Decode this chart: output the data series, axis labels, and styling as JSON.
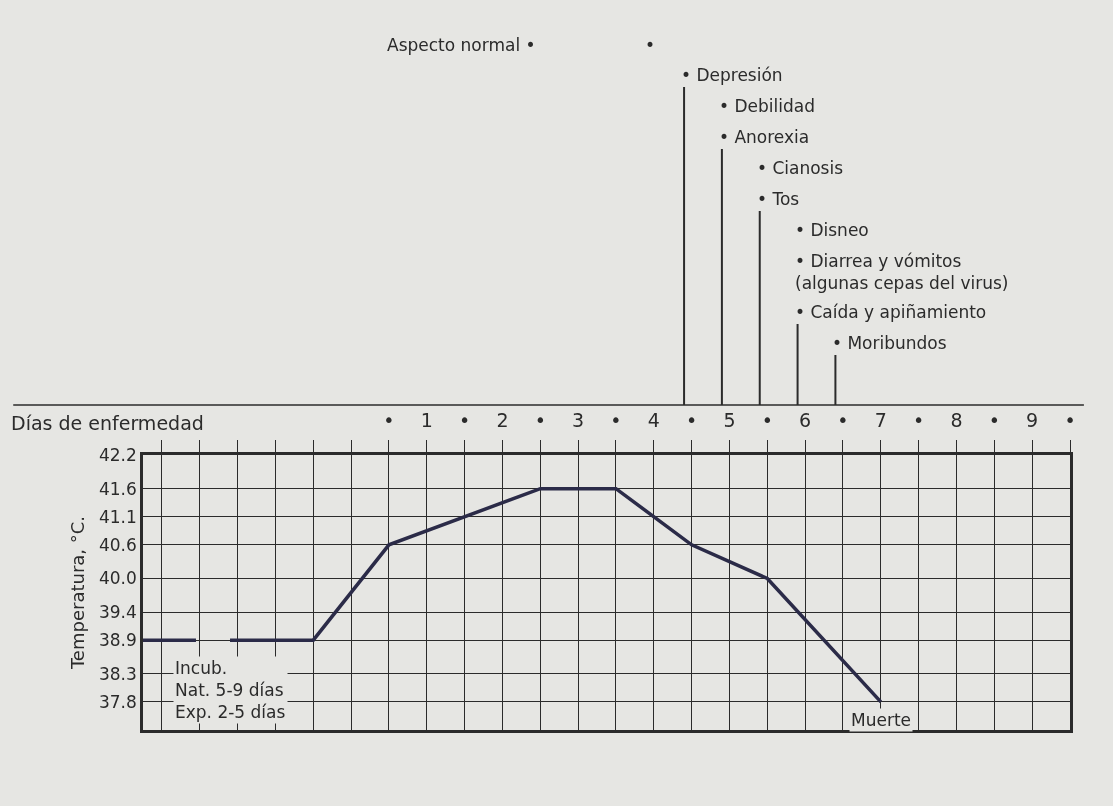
{
  "chart_data": {
    "type": "line",
    "xlabel": "Días de enfermedad",
    "ylabel": "Temperatura, °C.",
    "x": [
      -2.75,
      -2.05,
      -1.8,
      -1.6,
      -0.5,
      0.5,
      2.5,
      3.5,
      4.5,
      5.5,
      7
    ],
    "series": [
      {
        "color": "#2b2b48",
        "values": [
          38.9,
          38.9,
          null,
          38.9,
          38.9,
          40.6,
          41.6,
          41.6,
          40.6,
          40.0,
          37.8
        ]
      }
    ],
    "xlim": [
      -2.75,
      9.5
    ],
    "ylim": [
      37.3,
      42.2
    ],
    "xticks": [
      {
        "value": -2.5,
        "label": null
      },
      {
        "value": -2,
        "label": null
      },
      {
        "value": -1.5,
        "label": null
      },
      {
        "value": -1,
        "label": null
      },
      {
        "value": -0.5,
        "label": null
      },
      {
        "value": 0,
        "label": null
      },
      {
        "value": 0.5,
        "label": "•"
      },
      1,
      {
        "value": 1.5,
        "label": "•"
      },
      2,
      {
        "value": 2.5,
        "label": "•"
      },
      3,
      {
        "value": 3.5,
        "label": "•"
      },
      4,
      {
        "value": 4.5,
        "label": "•"
      },
      5,
      {
        "value": 5.5,
        "label": "•"
      },
      6,
      {
        "value": 6.5,
        "label": "•"
      },
      7,
      {
        "value": 7.5,
        "label": "•"
      },
      8,
      {
        "value": 8.5,
        "label": "•"
      },
      9,
      {
        "value": 9.5,
        "label": "•"
      }
    ],
    "yticks": [
      37.8,
      38.3,
      38.9,
      39.4,
      {
        "value": 40.0,
        "label": "40.0"
      },
      40.6,
      41.1,
      41.6,
      42.2
    ],
    "grid": true,
    "line_style": "solid",
    "annotations": [
      "Aspecto normal •",
      "•",
      "Incub.\nNat. 5-9 días\nExp. 2-5 días",
      "• Depresión",
      "• Debilidad",
      "• Anorexia",
      "• Cianosis",
      "• Tos",
      "• Disneo",
      "• Diarrea y vómitos\n(algunas cepas del virus)",
      "• Caída y apiñamiento",
      "• Moribundos",
      {
        "text": "Muerte",
        "x": 7,
        "y": 37.8
      }
    ]
  }
}
